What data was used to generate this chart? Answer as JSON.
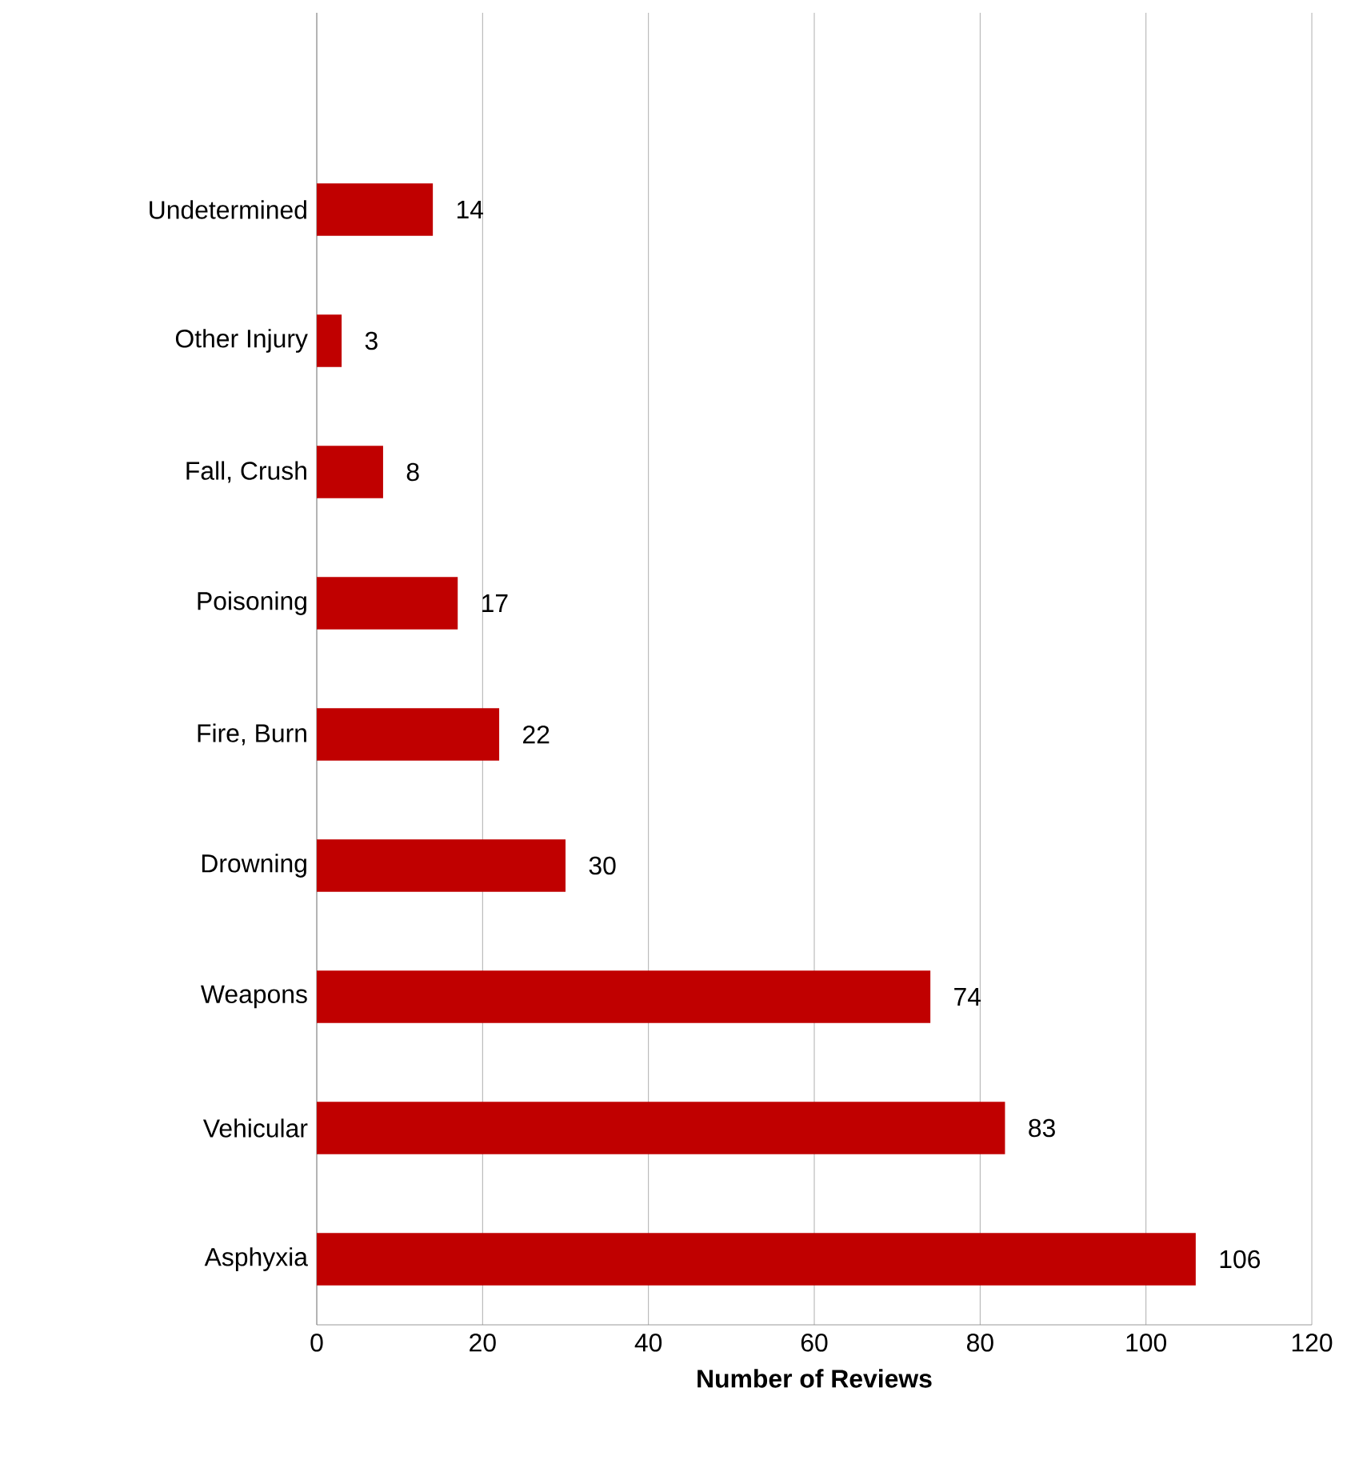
{
  "chart_data": {
    "type": "bar",
    "orientation": "horizontal",
    "xlabel": "Number of Reviews",
    "categories": [
      null,
      "Undetermined",
      "Other Injury",
      "Fall, Crush",
      "Poisoning",
      "Fire, Burn",
      "Drowning",
      "Weapons",
      "Vehicular",
      "Asphyxia"
    ],
    "values": [
      null,
      14,
      3,
      8,
      17,
      22,
      30,
      74,
      83,
      106
    ],
    "color": "#c00000",
    "xlim": [
      0,
      120
    ],
    "xticks": [
      0,
      20,
      40,
      60,
      80,
      100,
      120
    ],
    "grid": "x",
    "data_labels": true
  }
}
